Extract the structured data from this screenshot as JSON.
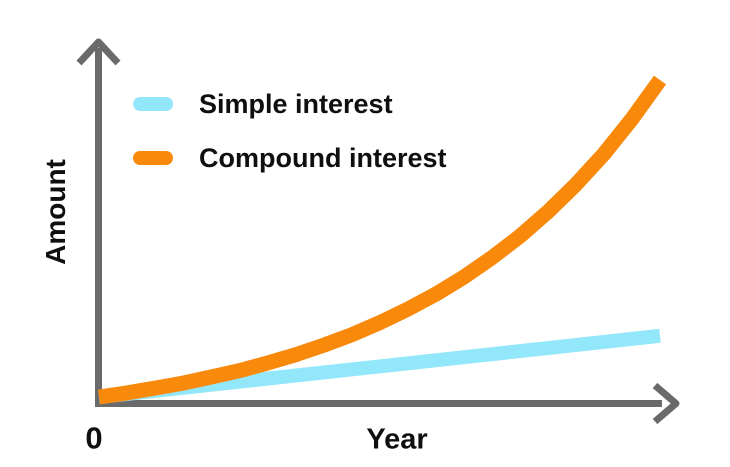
{
  "figure": {
    "background": "#ffffff",
    "text_color": "#0f0f0f",
    "axis_color": "#6a6a6a"
  },
  "axes": {
    "y_label": "Amount",
    "x_label": "Year",
    "origin_label": "0"
  },
  "chart_data": {
    "type": "line",
    "title": "",
    "xlabel": "Year",
    "ylabel": "Amount",
    "grid": false,
    "legend_position": "upper-left",
    "x_axis": {
      "tick_labels_shown": [
        "0"
      ],
      "numeric_scale_shown": false
    },
    "y_axis": {
      "tick_labels_shown": [],
      "numeric_scale_shown": false
    },
    "y_units": "amount relative to final compound-interest value",
    "series": [
      {
        "name": "Simple interest",
        "color": "#93E7FB",
        "shape": "linear",
        "x_norm": [
          0,
          1
        ],
        "values": [
          0,
          0.193
        ]
      },
      {
        "name": "Compound interest",
        "color": "#F8890B",
        "shape": "exponential",
        "x_norm": [
          0,
          0.05,
          0.1,
          0.15,
          0.2,
          0.25,
          0.3,
          0.35,
          0.4,
          0.45,
          0.5,
          0.55,
          0.6,
          0.65,
          0.7,
          0.75,
          0.8,
          0.85,
          0.9,
          0.95,
          1
        ],
        "values": [
          0,
          0.013,
          0.028,
          0.044,
          0.063,
          0.083,
          0.107,
          0.133,
          0.163,
          0.196,
          0.234,
          0.277,
          0.324,
          0.378,
          0.439,
          0.507,
          0.584,
          0.67,
          0.767,
          0.877,
          1.0
        ]
      }
    ]
  }
}
